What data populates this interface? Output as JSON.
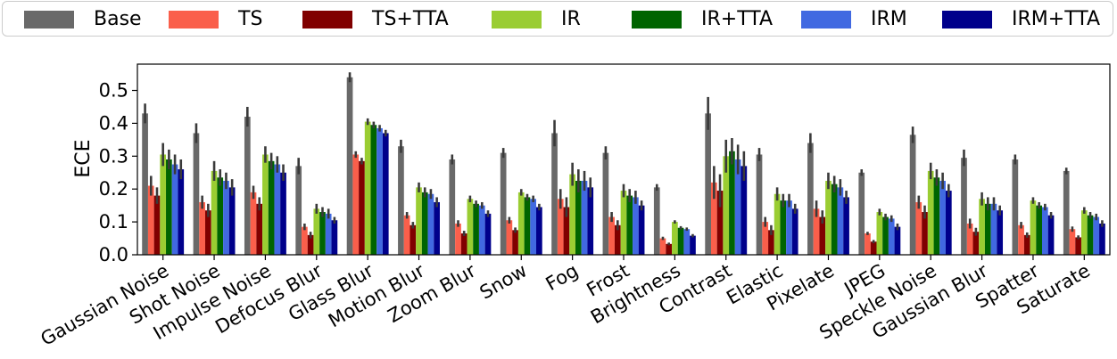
{
  "chart_data": {
    "type": "bar",
    "title": "",
    "xlabel": "",
    "ylabel": "ECE",
    "ylim": [
      0,
      0.58
    ],
    "yticks": [
      "0.0",
      "0.1",
      "0.2",
      "0.3",
      "0.4",
      "0.5"
    ],
    "legend_position": "top",
    "categories": [
      "Gaussian Noise",
      "Shot Noise",
      "Impulse Noise",
      "Defocus Blur",
      "Glass Blur",
      "Motion Blur",
      "Zoom Blur",
      "Snow",
      "Fog",
      "Frost",
      "Brightness",
      "Contrast",
      "Elastic",
      "Pixelate",
      "JPEG",
      "Speckle Noise",
      "Gaussian Blur",
      "Spatter",
      "Saturate"
    ],
    "series": [
      {
        "name": "Base",
        "color": "#696969",
        "values": [
          0.43,
          0.37,
          0.42,
          0.27,
          0.54,
          0.33,
          0.29,
          0.31,
          0.37,
          0.31,
          0.205,
          0.43,
          0.305,
          0.34,
          0.25,
          0.365,
          0.295,
          0.29,
          0.255
        ],
        "errors": [
          0.03,
          0.03,
          0.03,
          0.025,
          0.015,
          0.02,
          0.015,
          0.015,
          0.04,
          0.02,
          0.01,
          0.05,
          0.02,
          0.03,
          0.01,
          0.025,
          0.025,
          0.015,
          0.01
        ]
      },
      {
        "name": "TS",
        "color": "#FA5F4B",
        "values": [
          0.21,
          0.16,
          0.19,
          0.085,
          0.305,
          0.12,
          0.095,
          0.105,
          0.17,
          0.115,
          0.05,
          0.22,
          0.1,
          0.14,
          0.065,
          0.16,
          0.095,
          0.09,
          0.078
        ],
        "errors": [
          0.03,
          0.02,
          0.02,
          0.01,
          0.01,
          0.01,
          0.01,
          0.01,
          0.03,
          0.015,
          0.005,
          0.05,
          0.015,
          0.025,
          0.005,
          0.02,
          0.015,
          0.01,
          0.008
        ]
      },
      {
        "name": "TS+TTA",
        "color": "#800000",
        "values": [
          0.18,
          0.135,
          0.155,
          0.06,
          0.285,
          0.09,
          0.065,
          0.075,
          0.145,
          0.09,
          0.033,
          0.195,
          0.075,
          0.115,
          0.04,
          0.13,
          0.07,
          0.06,
          0.053
        ],
        "errors": [
          0.025,
          0.02,
          0.02,
          0.01,
          0.01,
          0.01,
          0.008,
          0.008,
          0.03,
          0.015,
          0.004,
          0.05,
          0.015,
          0.02,
          0.005,
          0.02,
          0.012,
          0.008,
          0.006
        ]
      },
      {
        "name": "IR",
        "color": "#9ACD32",
        "values": [
          0.305,
          0.255,
          0.305,
          0.14,
          0.405,
          0.205,
          0.17,
          0.19,
          0.245,
          0.195,
          0.1,
          0.3,
          0.185,
          0.225,
          0.13,
          0.255,
          0.17,
          0.165,
          0.135
        ],
        "errors": [
          0.035,
          0.03,
          0.025,
          0.015,
          0.01,
          0.015,
          0.01,
          0.01,
          0.035,
          0.02,
          0.005,
          0.05,
          0.02,
          0.025,
          0.01,
          0.025,
          0.02,
          0.01,
          0.01
        ]
      },
      {
        "name": "IR+TTA",
        "color": "#006400",
        "values": [
          0.29,
          0.235,
          0.285,
          0.13,
          0.395,
          0.19,
          0.155,
          0.175,
          0.225,
          0.18,
          0.082,
          0.315,
          0.165,
          0.215,
          0.115,
          0.235,
          0.155,
          0.15,
          0.12
        ],
        "errors": [
          0.03,
          0.025,
          0.025,
          0.015,
          0.01,
          0.015,
          0.01,
          0.01,
          0.035,
          0.02,
          0.005,
          0.04,
          0.02,
          0.025,
          0.01,
          0.025,
          0.02,
          0.01,
          0.01
        ]
      },
      {
        "name": "IRM",
        "color": "#4169E1",
        "values": [
          0.275,
          0.225,
          0.275,
          0.125,
          0.385,
          0.185,
          0.15,
          0.17,
          0.225,
          0.175,
          0.078,
          0.29,
          0.165,
          0.205,
          0.11,
          0.225,
          0.155,
          0.145,
          0.115
        ],
        "errors": [
          0.03,
          0.025,
          0.025,
          0.015,
          0.01,
          0.015,
          0.01,
          0.01,
          0.03,
          0.02,
          0.005,
          0.045,
          0.02,
          0.025,
          0.01,
          0.025,
          0.02,
          0.01,
          0.01
        ]
      },
      {
        "name": "IRM+TTA",
        "color": "#00008B",
        "values": [
          0.26,
          0.205,
          0.25,
          0.105,
          0.37,
          0.16,
          0.125,
          0.145,
          0.205,
          0.15,
          0.058,
          0.27,
          0.14,
          0.175,
          0.085,
          0.195,
          0.135,
          0.12,
          0.095
        ],
        "errors": [
          0.03,
          0.025,
          0.025,
          0.01,
          0.01,
          0.015,
          0.01,
          0.01,
          0.03,
          0.015,
          0.005,
          0.045,
          0.015,
          0.02,
          0.01,
          0.02,
          0.015,
          0.01,
          0.01
        ]
      }
    ]
  }
}
